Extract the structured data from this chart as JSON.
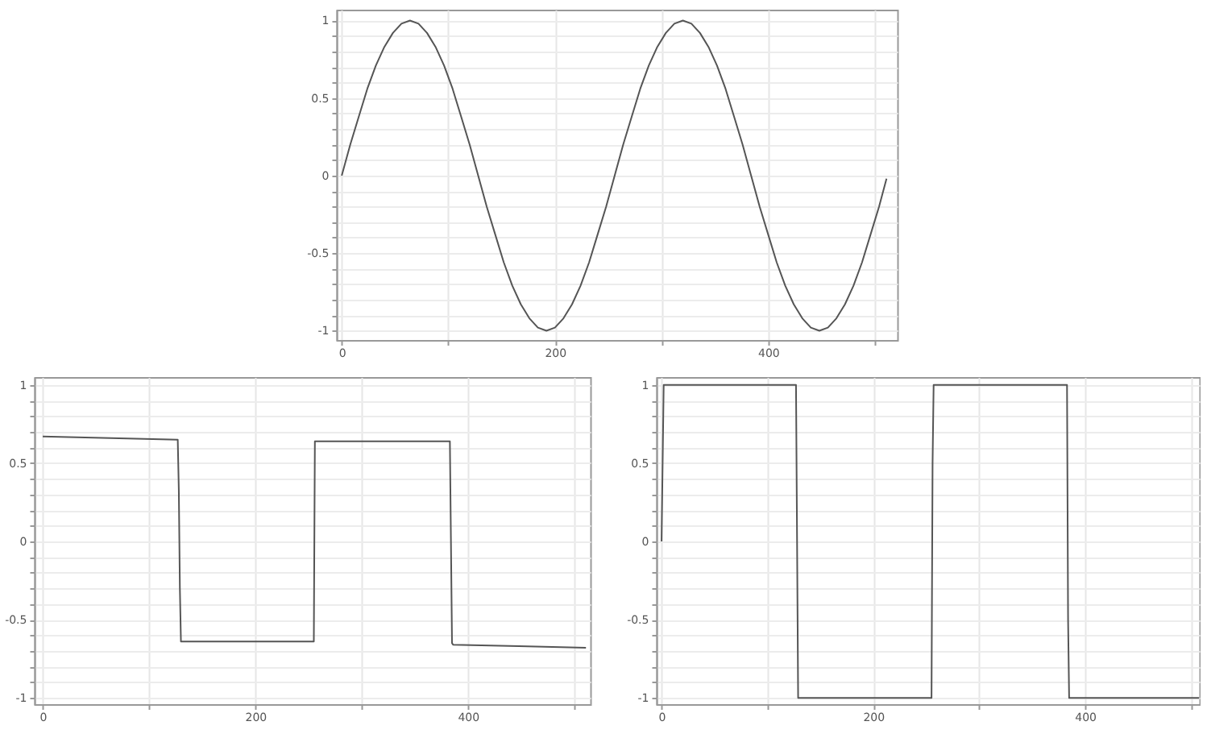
{
  "chart_data": [
    {
      "type": "line",
      "color": "#555555",
      "grid": true,
      "xlim": [
        -5,
        521
      ],
      "ylim": [
        -1.06,
        1.07
      ],
      "xticks": [
        0,
        {
          "value": 100,
          "label": null
        },
        200,
        {
          "value": 300,
          "label": null
        },
        400,
        {
          "value": 500,
          "label": null
        }
      ],
      "yticks": [
        -1,
        {
          "value": -0.9,
          "label": null
        },
        {
          "value": -0.8,
          "label": null
        },
        {
          "value": -0.7,
          "label": null
        },
        {
          "value": -0.6,
          "label": null
        },
        -0.5,
        {
          "value": -0.4,
          "label": null
        },
        {
          "value": -0.3,
          "label": null
        },
        {
          "value": -0.2,
          "label": null
        },
        {
          "value": -0.1,
          "label": null
        },
        0,
        {
          "value": 0.1,
          "label": null
        },
        {
          "value": 0.2,
          "label": null
        },
        {
          "value": 0.3,
          "label": null
        },
        {
          "value": 0.4,
          "label": null
        },
        0.5,
        {
          "value": 0.6,
          "label": null
        },
        {
          "value": 0.7,
          "label": null
        },
        {
          "value": 0.8,
          "label": null
        },
        {
          "value": 0.9,
          "label": null
        },
        1
      ],
      "x": [
        0,
        8,
        16,
        24,
        32,
        40,
        48,
        56,
        64,
        72,
        80,
        88,
        96,
        104,
        112,
        120,
        128,
        136,
        144,
        152,
        160,
        168,
        176,
        184,
        192,
        200,
        208,
        216,
        224,
        232,
        240,
        248,
        256,
        264,
        272,
        280,
        288,
        296,
        304,
        312,
        320,
        328,
        336,
        344,
        352,
        360,
        368,
        376,
        384,
        392,
        400,
        408,
        416,
        424,
        432,
        440,
        448,
        456,
        464,
        472,
        480,
        488,
        496,
        504,
        511
      ],
      "values": [
        0,
        0.2,
        0.38,
        0.56,
        0.71,
        0.83,
        0.92,
        0.98,
        1,
        0.98,
        0.92,
        0.83,
        0.71,
        0.56,
        0.38,
        0.2,
        0,
        -0.2,
        -0.38,
        -0.56,
        -0.71,
        -0.83,
        -0.92,
        -0.98,
        -1,
        -0.98,
        -0.92,
        -0.83,
        -0.71,
        -0.56,
        -0.38,
        -0.2,
        0,
        0.2,
        0.38,
        0.56,
        0.71,
        0.83,
        0.92,
        0.98,
        1,
        0.98,
        0.92,
        0.83,
        0.71,
        0.56,
        0.38,
        0.2,
        0,
        -0.2,
        -0.38,
        -0.56,
        -0.71,
        -0.83,
        -0.92,
        -0.98,
        -1,
        -0.98,
        -0.92,
        -0.83,
        -0.71,
        -0.56,
        -0.38,
        -0.2,
        -0.02
      ]
    },
    {
      "type": "line",
      "color": "#555555",
      "grid": true,
      "xlim": [
        -8,
        515
      ],
      "ylim": [
        -1.04,
        1.05
      ],
      "xticks": [
        0,
        {
          "value": 100,
          "label": null
        },
        200,
        {
          "value": 300,
          "label": null
        },
        400,
        {
          "value": 500,
          "label": null
        }
      ],
      "yticks": [
        -1,
        {
          "value": -0.9,
          "label": null
        },
        {
          "value": -0.8,
          "label": null
        },
        {
          "value": -0.7,
          "label": null
        },
        {
          "value": -0.6,
          "label": null
        },
        -0.5,
        {
          "value": -0.4,
          "label": null
        },
        {
          "value": -0.3,
          "label": null
        },
        {
          "value": -0.2,
          "label": null
        },
        {
          "value": -0.1,
          "label": null
        },
        0,
        {
          "value": 0.1,
          "label": null
        },
        {
          "value": 0.2,
          "label": null
        },
        {
          "value": 0.3,
          "label": null
        },
        {
          "value": 0.4,
          "label": null
        },
        0.5,
        {
          "value": 0.6,
          "label": null
        },
        {
          "value": 0.7,
          "label": null
        },
        {
          "value": 0.8,
          "label": null
        },
        {
          "value": 0.9,
          "label": null
        },
        1
      ],
      "x": [
        0,
        64,
        127,
        128,
        129,
        130,
        192,
        255,
        256,
        257,
        320,
        383,
        384,
        385,
        386,
        448,
        511
      ],
      "values": [
        0.67,
        0.66,
        0.65,
        0.33,
        -0.3,
        -0.64,
        -0.64,
        -0.64,
        0.64,
        0.64,
        0.64,
        0.64,
        0,
        -0.65,
        -0.66,
        -0.67,
        -0.68
      ]
    },
    {
      "type": "line",
      "color": "#555555",
      "grid": true,
      "xlim": [
        -5,
        508
      ],
      "ylim": [
        -1.04,
        1.05
      ],
      "xticks": [
        0,
        {
          "value": 100,
          "label": null
        },
        200,
        {
          "value": 300,
          "label": null
        },
        400,
        {
          "value": 500,
          "label": null
        }
      ],
      "yticks": [
        -1,
        {
          "value": -0.9,
          "label": null
        },
        {
          "value": -0.8,
          "label": null
        },
        {
          "value": -0.7,
          "label": null
        },
        {
          "value": -0.6,
          "label": null
        },
        -0.5,
        {
          "value": -0.4,
          "label": null
        },
        {
          "value": -0.3,
          "label": null
        },
        {
          "value": -0.2,
          "label": null
        },
        {
          "value": -0.1,
          "label": null
        },
        0,
        {
          "value": 0.1,
          "label": null
        },
        {
          "value": 0.2,
          "label": null
        },
        {
          "value": 0.3,
          "label": null
        },
        {
          "value": 0.4,
          "label": null
        },
        0.5,
        {
          "value": 0.6,
          "label": null
        },
        {
          "value": 0.7,
          "label": null
        },
        {
          "value": 0.8,
          "label": null
        },
        {
          "value": 0.9,
          "label": null
        },
        1
      ],
      "x": [
        0,
        1,
        2,
        127,
        128,
        129,
        255,
        256,
        257,
        383,
        384,
        385,
        508
      ],
      "values": [
        0,
        0.5,
        1,
        1,
        0,
        -1,
        -1,
        0.5,
        1,
        1,
        -0.5,
        -1,
        -1
      ]
    }
  ]
}
